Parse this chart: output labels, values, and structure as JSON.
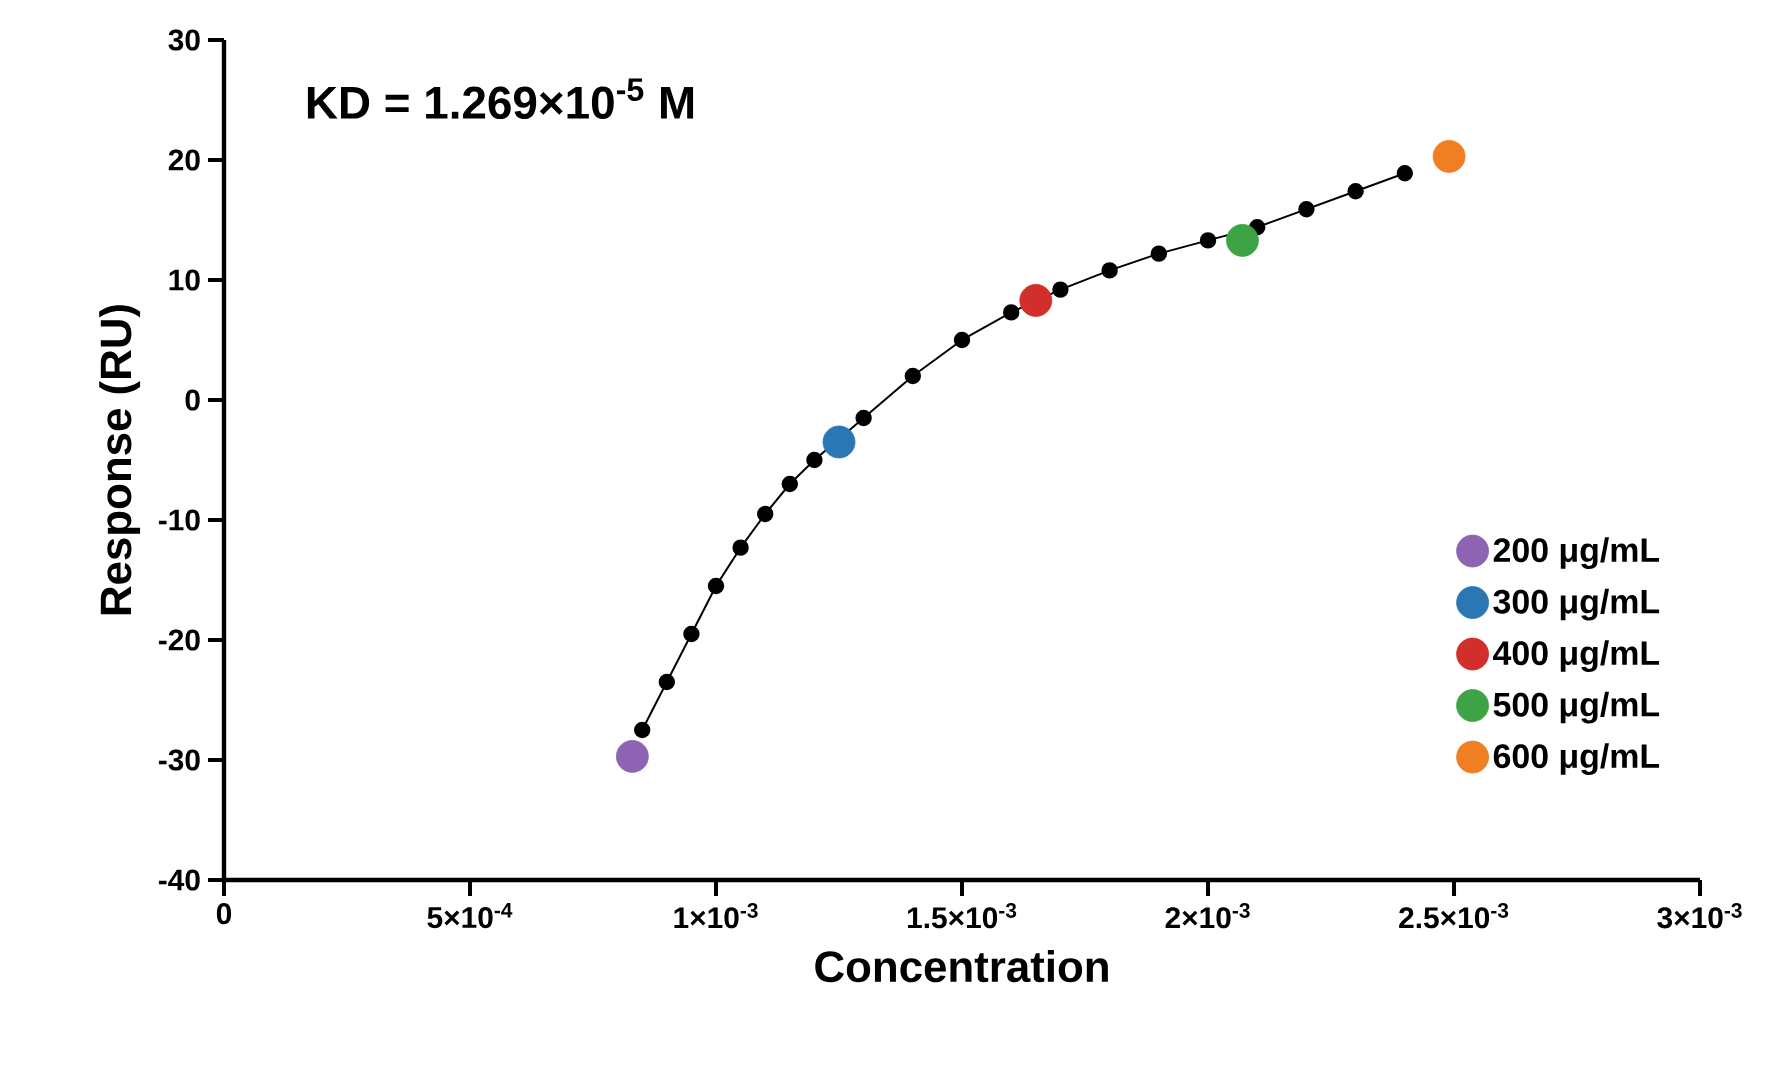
{
  "chart_data": {
    "type": "scatter",
    "xlabel": "Concentration",
    "ylabel": "Response (RU)",
    "annotations": [
      "KD = 1.269×10$^{-5}$ M"
    ],
    "xlim": [
      0,
      0.003
    ],
    "ylim": [
      -40,
      30
    ],
    "xticks": [
      0,
      {
        "value": 0.0005,
        "label": "5×10$^{-4}$"
      },
      {
        "value": 0.001,
        "label": "1×10$^{-3}$"
      },
      {
        "value": 0.0015,
        "label": "1.5×10$^{-3}$"
      },
      {
        "value": 0.002,
        "label": "2×10$^{-3}$"
      },
      {
        "value": 0.0025,
        "label": "2.5×10$^{-3}$"
      },
      {
        "value": 0.003,
        "label": "3×10$^{-3}$"
      }
    ],
    "yticks": [
      -40,
      -30,
      -20,
      -10,
      0,
      10,
      20,
      30
    ],
    "grid": false,
    "legend": "right",
    "series": [
      {
        "type": "line",
        "marker": "circle",
        "color": "#000000",
        "x": [
          0.00085,
          0.0009,
          0.00095,
          0.001,
          0.00105,
          0.0011,
          0.00115,
          0.0012,
          0.0013,
          0.0014,
          0.0015,
          0.0016,
          0.0017,
          0.0018,
          0.0019,
          0.002,
          0.0021,
          0.0022,
          0.0023,
          0.0024
        ],
        "values": [
          -27.5,
          -23.5,
          -19.5,
          -15.5,
          -12.3,
          -9.5,
          -7,
          -5,
          -1.5,
          2,
          5,
          7.3,
          9.2,
          10.8,
          12.2,
          13.3,
          14.4,
          15.9,
          17.4,
          18.9
        ]
      },
      {
        "name": "200 μg/mL",
        "color": "#8e63b3",
        "x": [
          0.00083
        ],
        "values": [
          -29.7
        ]
      },
      {
        "name": "300 μg/mL",
        "color": "#2a77b4",
        "x": [
          0.00125
        ],
        "values": [
          -3.5
        ]
      },
      {
        "name": "400 μg/mL",
        "color": "#d22e2b",
        "x": [
          0.00165
        ],
        "values": [
          8.3
        ]
      },
      {
        "name": "500 μg/mL",
        "color": "#3da344",
        "x": [
          0.00207
        ],
        "values": [
          13.3
        ]
      },
      {
        "name": "600 μg/mL",
        "color": "#f07f24",
        "x": [
          0.00249
        ],
        "values": [
          20.3
        ]
      }
    ]
  }
}
